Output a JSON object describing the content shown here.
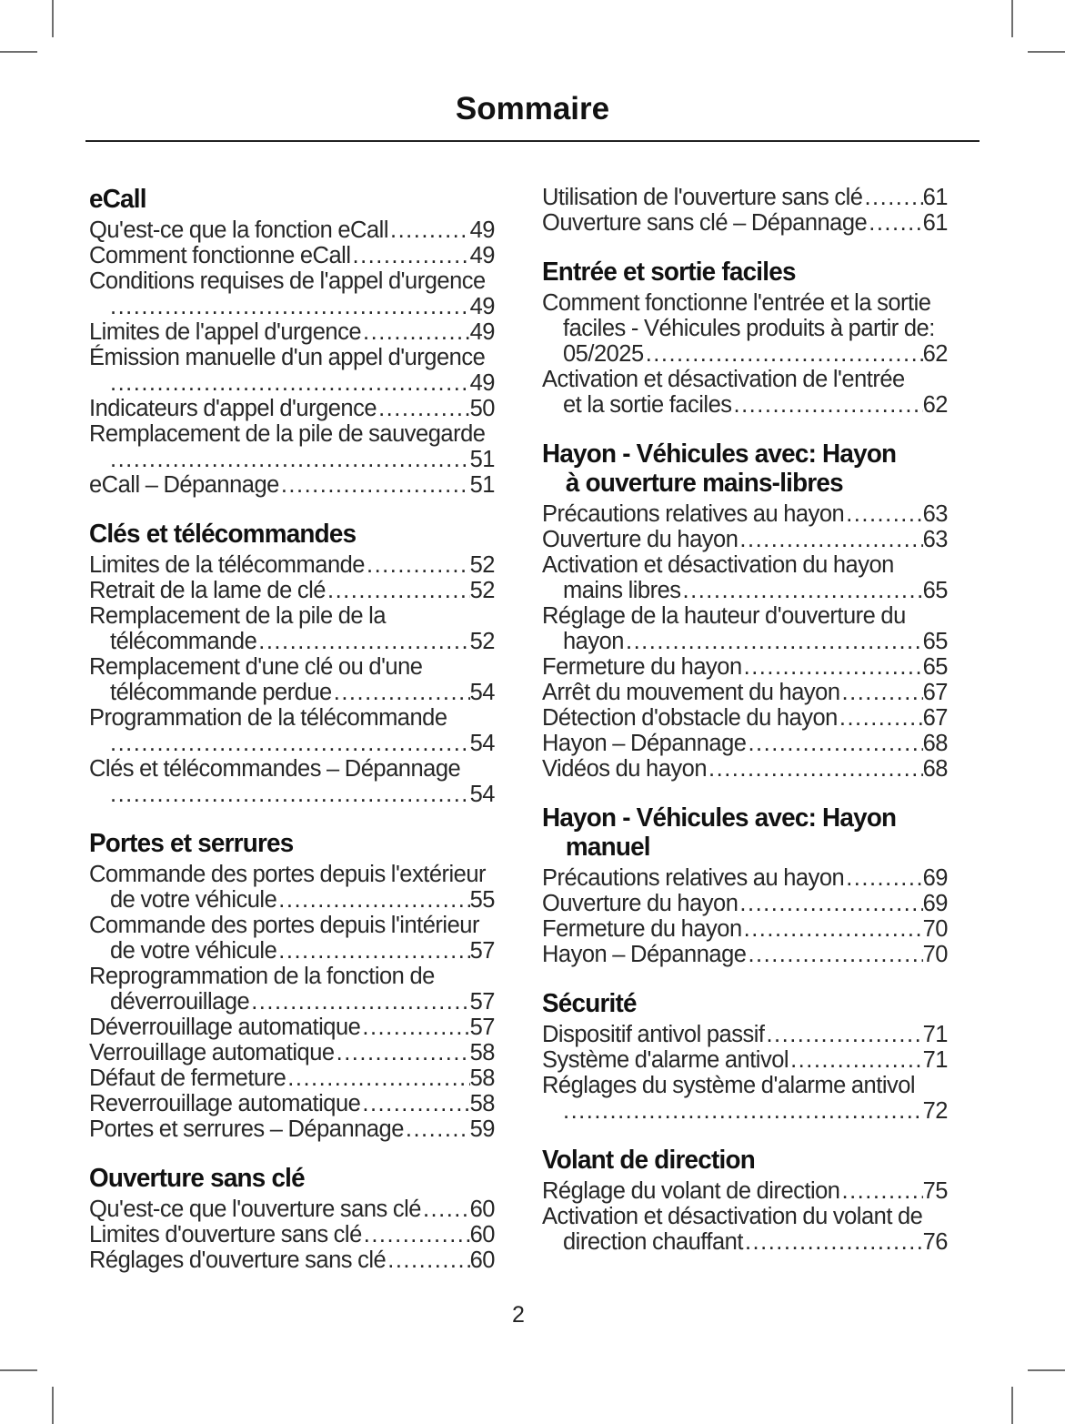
{
  "page": {
    "title": "Sommaire",
    "page_number": "2"
  },
  "colors": {
    "text": "#272727",
    "heading": "#111111",
    "rule": "#222222",
    "crop_mark": "#6f6f6f",
    "background": "#ffffff"
  },
  "columns": [
    {
      "sections": [
        {
          "title_lines": [
            "eCall"
          ],
          "entries": [
            {
              "pre": [],
              "last": "Qu'est-ce que la fonction eCall",
              "page": "49"
            },
            {
              "pre": [],
              "last": "Comment fonctionne eCall",
              "page": "49"
            },
            {
              "pre": [
                "Conditions requises de l'appel d'urgence"
              ],
              "last": "",
              "page": "49"
            },
            {
              "pre": [],
              "last": "Limites de l'appel d'urgence",
              "page": "49"
            },
            {
              "pre": [
                "Émission manuelle d'un appel d'urgence"
              ],
              "last": "",
              "page": "49"
            },
            {
              "pre": [],
              "last": "Indicateurs d'appel d'urgence",
              "page": "50"
            },
            {
              "pre": [
                "Remplacement de la pile de sauvegarde"
              ],
              "last": "",
              "page": "51"
            },
            {
              "pre": [],
              "last": "eCall – Dépannage",
              "page": "51"
            }
          ]
        },
        {
          "title_lines": [
            "Clés et télécommandes"
          ],
          "entries": [
            {
              "pre": [],
              "last": "Limites de la télécommande",
              "page": "52"
            },
            {
              "pre": [],
              "last": "Retrait de la lame de clé",
              "page": "52"
            },
            {
              "pre": [
                "Remplacement de la pile de la"
              ],
              "last": "télécommande ",
              "page": "52"
            },
            {
              "pre": [
                "Remplacement d'une clé ou d'une"
              ],
              "last": "télécommande perdue",
              "page": "54"
            },
            {
              "pre": [
                "Programmation de la télécommande"
              ],
              "last": "",
              "page": "54"
            },
            {
              "pre": [
                "Clés et télécommandes – Dépannage"
              ],
              "last": "",
              "page": "54"
            }
          ]
        },
        {
          "title_lines": [
            "Portes et serrures"
          ],
          "entries": [
            {
              "pre": [
                "Commande des portes depuis l'extérieur"
              ],
              "last": "de votre véhicule",
              "page": "55"
            },
            {
              "pre": [
                "Commande des portes depuis l'intérieur"
              ],
              "last": "de votre véhicule",
              "page": "57"
            },
            {
              "pre": [
                "Reprogrammation de la fonction de"
              ],
              "last": "déverrouillage ",
              "page": "57"
            },
            {
              "pre": [],
              "last": "Déverrouillage automatique ",
              "page": "57"
            },
            {
              "pre": [],
              "last": "Verrouillage automatique",
              "page": "58"
            },
            {
              "pre": [],
              "last": "Défaut de fermeture",
              "page": "58"
            },
            {
              "pre": [],
              "last": "Reverrouillage automatique",
              "page": "58"
            },
            {
              "pre": [],
              "last": "Portes et serrures – Dépannage",
              "page": "59"
            }
          ]
        },
        {
          "title_lines": [
            "Ouverture sans clé"
          ],
          "entries": [
            {
              "pre": [],
              "last": "Qu'est-ce que l'ouverture sans clé",
              "page": "60"
            },
            {
              "pre": [],
              "last": "Limites d'ouverture sans clé",
              "page": "60"
            },
            {
              "pre": [],
              "last": "Réglages d'ouverture sans clé",
              "page": "60"
            }
          ]
        }
      ]
    },
    {
      "sections": [
        {
          "title_lines": [],
          "entries": [
            {
              "pre": [],
              "last": "Utilisation de l'ouverture sans clé",
              "page": "61"
            },
            {
              "pre": [],
              "last": "Ouverture sans clé – Dépannage",
              "page": "61"
            }
          ]
        },
        {
          "title_lines": [
            "Entrée et sortie faciles"
          ],
          "entries": [
            {
              "pre": [
                "Comment fonctionne l'entrée et la sortie",
                "faciles - Véhicules produits à partir de:"
              ],
              "last": "05/2025 ",
              "page": "62"
            },
            {
              "pre": [
                "Activation et désactivation de l'entrée"
              ],
              "last": "et la sortie faciles",
              "page": "62"
            }
          ]
        },
        {
          "title_lines": [
            "Hayon - Véhicules avec: Hayon",
            "à ouverture mains-libres"
          ],
          "entries": [
            {
              "pre": [],
              "last": "Précautions relatives au hayon",
              "page": "63"
            },
            {
              "pre": [],
              "last": "Ouverture du hayon",
              "page": "63"
            },
            {
              "pre": [
                "Activation et désactivation du hayon"
              ],
              "last": "mains libres",
              "page": "65"
            },
            {
              "pre": [
                "Réglage de la hauteur d'ouverture du"
              ],
              "last": "hayon",
              "page": "65"
            },
            {
              "pre": [],
              "last": "Fermeture du hayon",
              "page": "65"
            },
            {
              "pre": [],
              "last": "Arrêt du mouvement du hayon",
              "page": "67"
            },
            {
              "pre": [],
              "last": "Détection d'obstacle du hayon",
              "page": "67"
            },
            {
              "pre": [],
              "last": "Hayon – Dépannage",
              "page": "68"
            },
            {
              "pre": [],
              "last": "Vidéos du hayon",
              "page": "68"
            }
          ]
        },
        {
          "title_lines": [
            "Hayon - Véhicules avec: Hayon",
            "manuel"
          ],
          "entries": [
            {
              "pre": [],
              "last": "Précautions relatives au hayon",
              "page": "69"
            },
            {
              "pre": [],
              "last": "Ouverture du hayon",
              "page": "69"
            },
            {
              "pre": [],
              "last": "Fermeture du hayon",
              "page": "70"
            },
            {
              "pre": [],
              "last": "Hayon – Dépannage",
              "page": "70"
            }
          ]
        },
        {
          "title_lines": [
            "Sécurité"
          ],
          "entries": [
            {
              "pre": [],
              "last": "Dispositif antivol passif",
              "page": "71"
            },
            {
              "pre": [],
              "last": "Système d'alarme antivol",
              "page": "71"
            },
            {
              "pre": [
                "Réglages du système d'alarme antivol"
              ],
              "last": "",
              "page": "72"
            }
          ]
        },
        {
          "title_lines": [
            "Volant de direction"
          ],
          "entries": [
            {
              "pre": [],
              "last": "Réglage du volant de direction",
              "page": "75"
            },
            {
              "pre": [
                "Activation et désactivation du volant de"
              ],
              "last": "direction chauffant ",
              "page": "76"
            }
          ]
        }
      ]
    }
  ]
}
